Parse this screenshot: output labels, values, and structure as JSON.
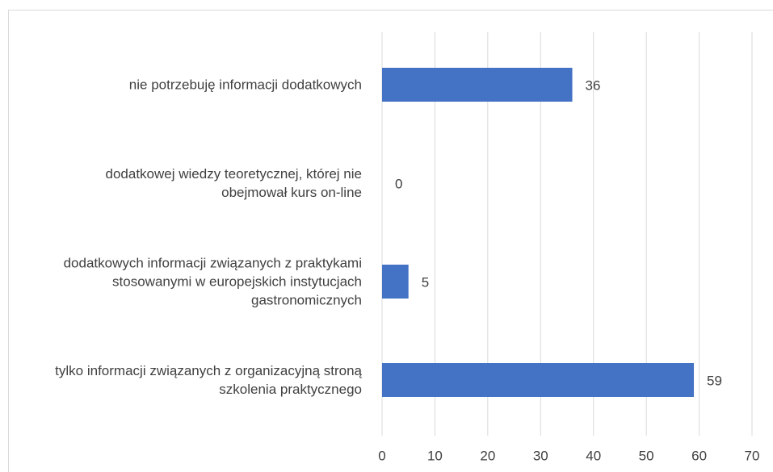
{
  "chart_data": {
    "type": "barh",
    "categories": [
      "nie potrzebuję informacji dodatkowych",
      "dodatkowej wiedzy teoretycznej, której nie obejmował kurs on-line",
      "dodatkowych informacji związanych z praktykami stosowanymi w europejskich instytucjach gastronomicznych",
      "tylko informacji związanych z organizacyjną stroną szkolenia praktycznego"
    ],
    "values": [
      36,
      0,
      5,
      59
    ],
    "color": "#4472c4",
    "xlim": [
      0,
      70
    ],
    "xticks": [
      0,
      10,
      20,
      30,
      40,
      50,
      60,
      70
    ],
    "grid": true
  }
}
